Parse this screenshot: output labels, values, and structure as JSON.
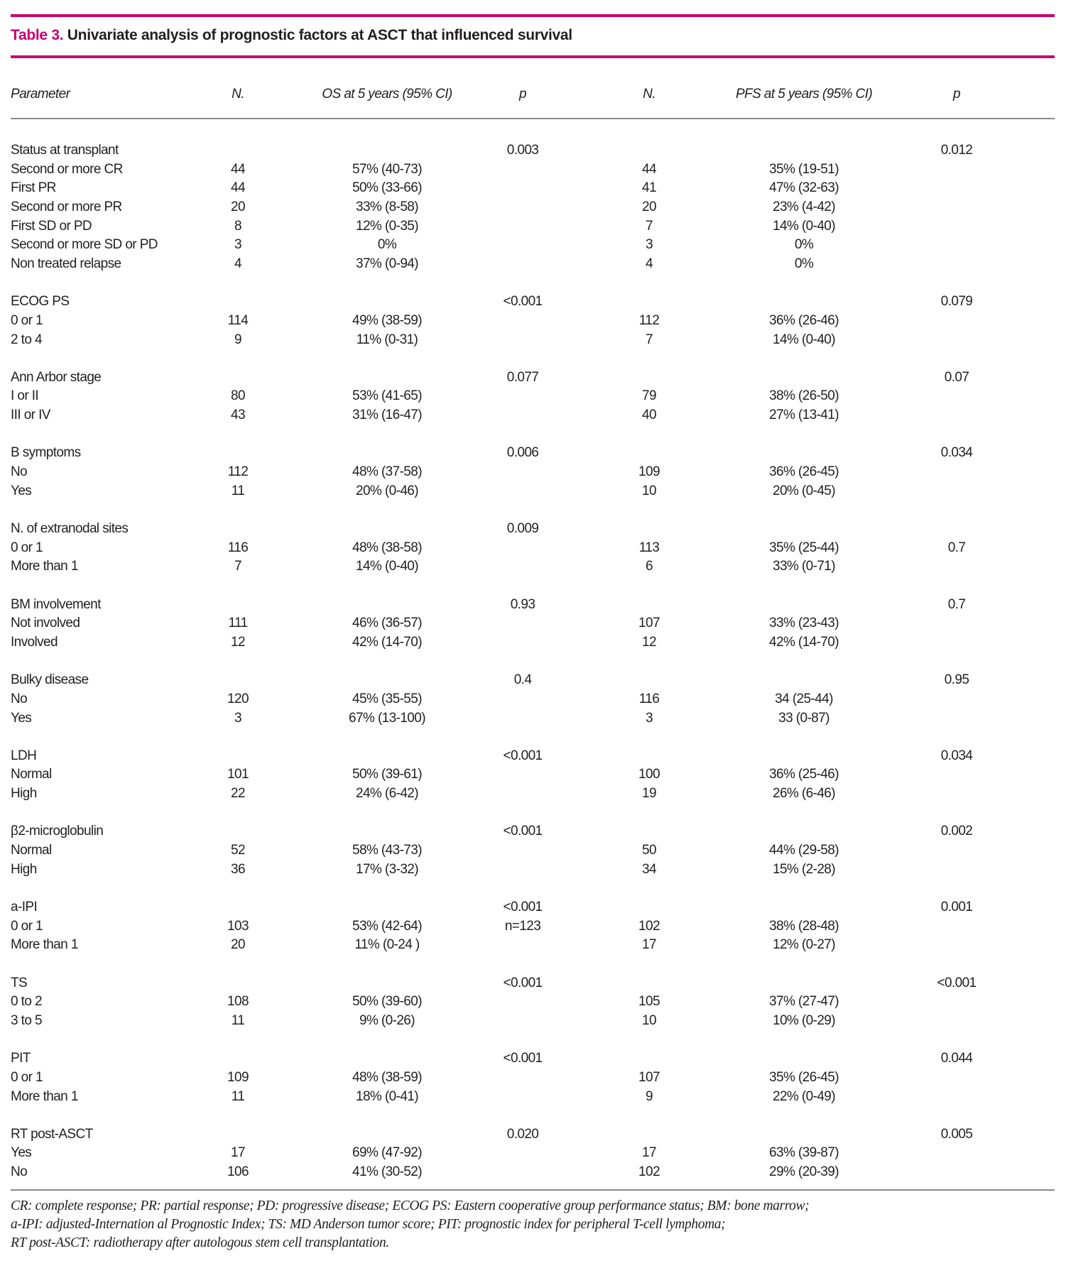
{
  "title": {
    "label": "Table 3.",
    "text": "Univariate analysis of prognostic factors at ASCT that influenced survival"
  },
  "colors": {
    "accent": "#c8006e",
    "rule": "#8a8a8a"
  },
  "headers": [
    "Parameter",
    "N.",
    "OS at 5 years (95% CI)",
    "p",
    "N.",
    "PFS at 5 years (95% CI)",
    "p"
  ],
  "groups": [
    {
      "rows": [
        [
          "Status at transplant",
          "",
          "",
          "0.003",
          "",
          "",
          "0.012"
        ],
        [
          "Second or more CR",
          "44",
          "57% (40-73)",
          "",
          "44",
          "35% (19-51)",
          ""
        ],
        [
          "First PR",
          "44",
          "50% (33-66)",
          "",
          "41",
          "47% (32-63)",
          ""
        ],
        [
          "Second or more PR",
          "20",
          "33% (8-58)",
          "",
          "20",
          "23% (4-42)",
          ""
        ],
        [
          "First SD or PD",
          "8",
          "12% (0-35)",
          "",
          "7",
          "14% (0-40)",
          ""
        ],
        [
          "Second or more SD or PD",
          "3",
          "0%",
          "",
          "3",
          "0%",
          ""
        ],
        [
          "Non treated relapse",
          "4",
          "37% (0-94)",
          "",
          "4",
          "0%",
          ""
        ]
      ]
    },
    {
      "rows": [
        [
          "ECOG PS",
          "",
          "",
          "<0.001",
          "",
          "",
          "0.079"
        ],
        [
          "0 or 1",
          "114",
          "49% (38-59)",
          "",
          "112",
          "36% (26-46)",
          ""
        ],
        [
          "2 to 4",
          "9",
          "11% (0-31)",
          "",
          "7",
          "14% (0-40)",
          ""
        ]
      ]
    },
    {
      "rows": [
        [
          "Ann Arbor stage",
          "",
          "",
          "0.077",
          "",
          "",
          "0.07"
        ],
        [
          "I or II",
          "80",
          "53% (41-65)",
          "",
          "79",
          "38% (26-50)",
          ""
        ],
        [
          "III or IV",
          "43",
          "31% (16-47)",
          "",
          "40",
          "27% (13-41)",
          ""
        ]
      ]
    },
    {
      "rows": [
        [
          "B symptoms",
          "",
          "",
          "0.006",
          "",
          "",
          "0.034"
        ],
        [
          "No",
          "112",
          "48% (37-58)",
          "",
          "109",
          "36% (26-45)",
          ""
        ],
        [
          "Yes",
          "11",
          "20% (0-46)",
          "",
          "10",
          "20% (0-45)",
          ""
        ]
      ]
    },
    {
      "rows": [
        [
          "N. of extranodal sites",
          "",
          "",
          "0.009",
          "",
          "",
          ""
        ],
        [
          "0 or 1",
          "116",
          "48% (38-58)",
          "",
          "113",
          "35% (25-44)",
          "0.7"
        ],
        [
          "More than 1",
          "7",
          "14% (0-40)",
          "",
          "6",
          "33% (0-71)",
          ""
        ]
      ]
    },
    {
      "rows": [
        [
          "BM involvement",
          "",
          "",
          "0.93",
          "",
          "",
          "0.7"
        ],
        [
          "Not involved",
          "111",
          "46% (36-57)",
          "",
          "107",
          "33% (23-43)",
          ""
        ],
        [
          "Involved",
          "12",
          "42% (14-70)",
          "",
          "12",
          "42% (14-70)",
          ""
        ]
      ]
    },
    {
      "rows": [
        [
          "Bulky disease",
          "",
          "",
          "0.4",
          "",
          "",
          "0.95"
        ],
        [
          "No",
          "120",
          "45% (35-55)",
          "",
          "116",
          "34 (25-44)",
          ""
        ],
        [
          "Yes",
          "3",
          "67% (13-100)",
          "",
          "3",
          "33 (0-87)",
          ""
        ]
      ]
    },
    {
      "rows": [
        [
          "LDH",
          "",
          "",
          "<0.001",
          "",
          "",
          "0.034"
        ],
        [
          "Normal",
          "101",
          "50% (39-61)",
          "",
          "100",
          "36% (25-46)",
          ""
        ],
        [
          "High",
          "22",
          "24% (6-42)",
          "",
          "19",
          "26% (6-46)",
          ""
        ]
      ]
    },
    {
      "rows": [
        [
          "β2-microglobulin",
          "",
          "",
          "<0.001",
          "",
          "",
          "0.002"
        ],
        [
          "Normal",
          "52",
          "58% (43-73)",
          "",
          "50",
          "44% (29-58)",
          ""
        ],
        [
          "High",
          "36",
          "17% (3-32)",
          "",
          "34",
          "15% (2-28)",
          ""
        ]
      ]
    },
    {
      "rows": [
        [
          "a-IPI",
          "",
          "",
          "<0.001",
          "",
          "",
          "0.001"
        ],
        [
          "0 or 1",
          "103",
          "53% (42-64)",
          "n=123",
          "102",
          "38% (28-48)",
          ""
        ],
        [
          "More than 1",
          "20",
          "11% (0-24 )",
          "",
          "17",
          "12% (0-27)",
          ""
        ]
      ]
    },
    {
      "rows": [
        [
          "TS",
          "",
          "",
          "<0.001",
          "",
          "",
          "<0.001"
        ],
        [
          "0 to 2",
          "108",
          "50% (39-60)",
          "",
          "105",
          "37% (27-47)",
          ""
        ],
        [
          "3 to 5",
          "11",
          "9% (0-26)",
          "",
          "10",
          "10% (0-29)",
          ""
        ]
      ]
    },
    {
      "rows": [
        [
          "PIT",
          "",
          "",
          "<0.001",
          "",
          "",
          "0.044"
        ],
        [
          "0 or 1",
          "109",
          "48% (38-59)",
          "",
          "107",
          "35% (26-45)",
          ""
        ],
        [
          "More than 1",
          "11",
          "18% (0-41)",
          "",
          "9",
          "22% (0-49)",
          ""
        ]
      ]
    },
    {
      "rows": [
        [
          "RT post-ASCT",
          "",
          "",
          "0.020",
          "",
          "",
          "0.005"
        ],
        [
          "Yes",
          "17",
          "69% (47-92)",
          "",
          "17",
          "63% (39-87)",
          ""
        ],
        [
          "No",
          "106",
          "41% (30-52)",
          "",
          "102",
          "29% (20-39)",
          ""
        ]
      ]
    }
  ],
  "footnote": [
    "CR: complete response; PR: partial response; PD: progressive disease; ECOG PS: Eastern cooperative group performance status; BM: bone marrow;",
    "a-IPI: adjusted-Internation al Prognostic Index; TS: MD Anderson tumor score; PIT: prognostic index for peripheral T-cell lymphoma;",
    "RT post-ASCT: radiotherapy after autologous stem cell transplantation."
  ]
}
